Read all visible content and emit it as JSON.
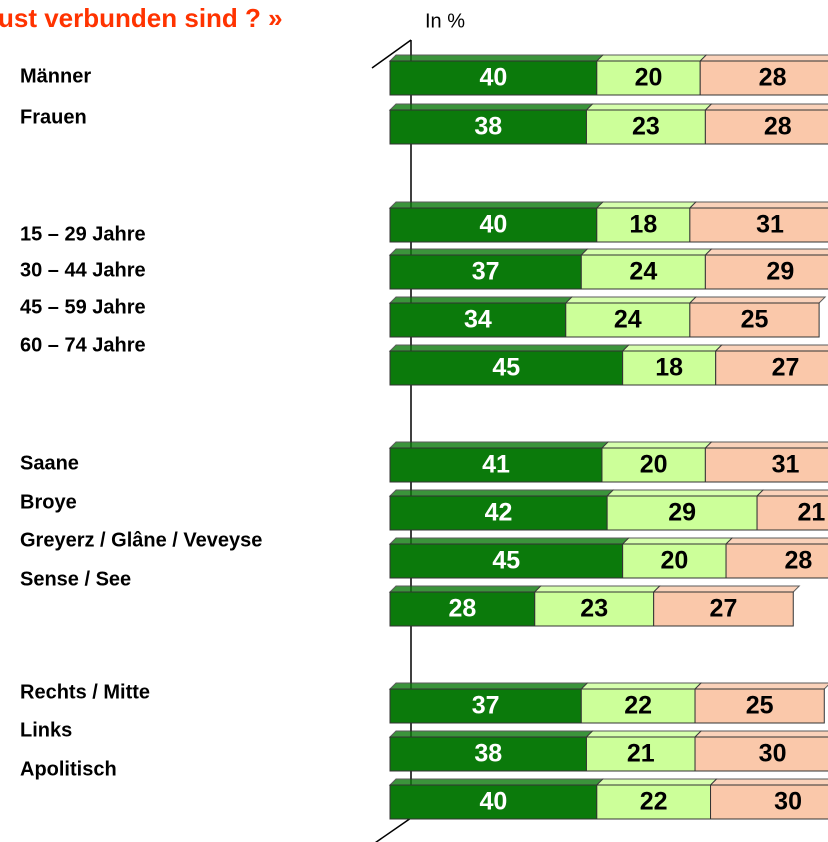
{
  "chart_data": {
    "type": "stacked-bar-horizontal",
    "title": "ust verbunden sind ? »",
    "unit_label": "In %",
    "categories": [
      "Männer",
      "Frauen",
      "15 – 29 Jahre",
      "30 – 44 Jahre",
      "45 – 59 Jahre",
      "60 – 74 Jahre",
      "Saane",
      "Broye",
      "Greyerz / Glâne / Veveyse",
      "Sense / See",
      "Rechts / Mitte",
      "Links",
      "Apolitisch"
    ],
    "series": [
      {
        "color": "#0b7a0b",
        "text_color": "#ffffff",
        "values": [
          40,
          38,
          40,
          37,
          34,
          45,
          41,
          42,
          45,
          28,
          37,
          38,
          40
        ]
      },
      {
        "color": "#ccff99",
        "text_color": "#000000",
        "values": [
          20,
          23,
          18,
          24,
          24,
          18,
          20,
          29,
          20,
          23,
          22,
          21,
          22
        ]
      },
      {
        "color": "#fac8aa",
        "text_color": "#000000",
        "values": [
          28,
          28,
          31,
          29,
          25,
          27,
          31,
          21,
          28,
          27,
          25,
          30,
          30
        ]
      }
    ],
    "xlim": [
      0,
      100
    ]
  }
}
